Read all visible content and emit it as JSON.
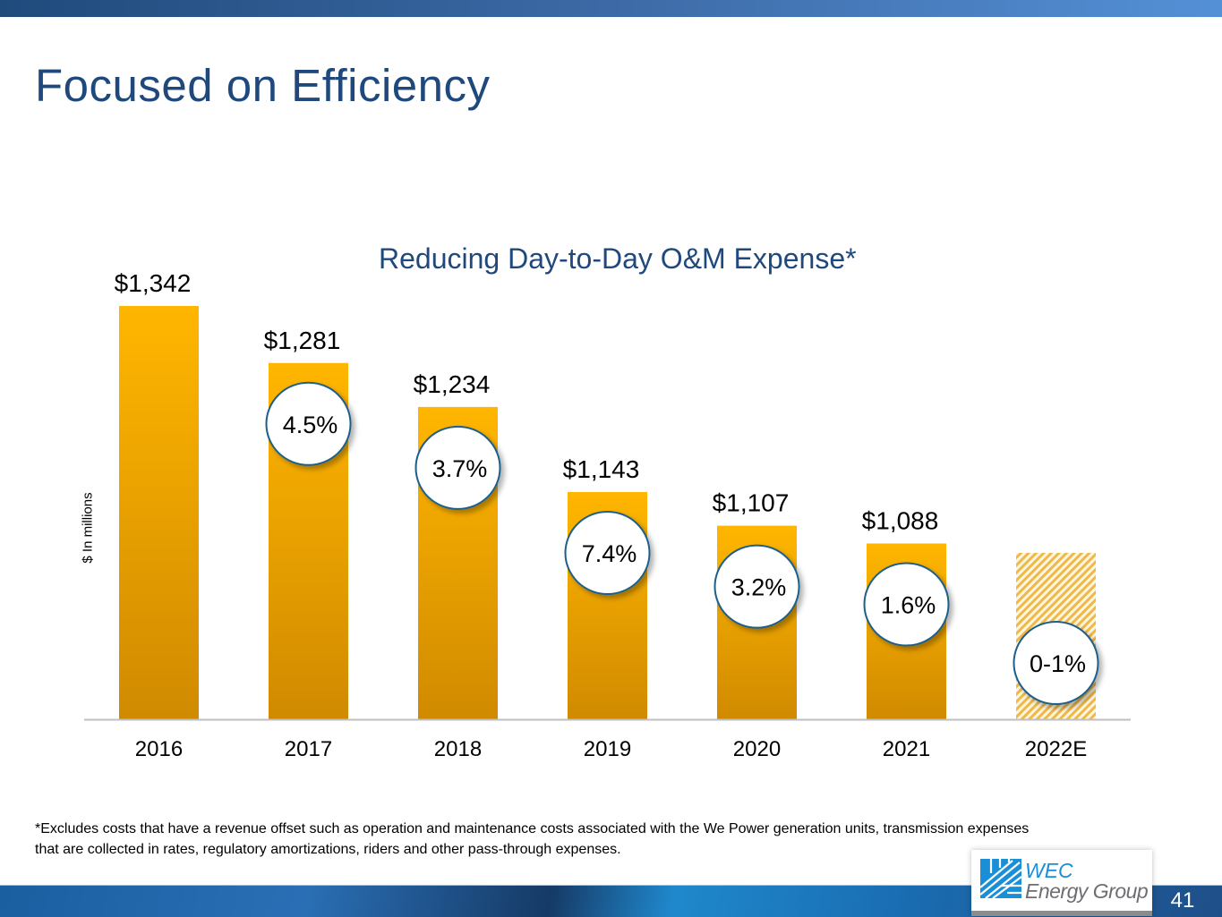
{
  "header": {
    "title": "Focused on Efficiency"
  },
  "chart_data": {
    "type": "bar",
    "title": "Reducing Day-to-Day O&M Expense*",
    "xlabel": "",
    "ylabel": "$ In millions",
    "categories": [
      "2016",
      "2017",
      "2018",
      "2019",
      "2020",
      "2021",
      "2022E"
    ],
    "values": [
      1342,
      1281,
      1234,
      1143,
      1107,
      1088,
      null
    ],
    "value_labels": [
      "$1,342",
      "$1,281",
      "$1,234",
      "$1,143",
      "$1,107",
      "$1,088",
      ""
    ],
    "estimate_value_approx": 1078,
    "reduction_labels": [
      "",
      "4.5%",
      "3.7%",
      "7.4%",
      "3.2%",
      "1.6%",
      "0-1%"
    ],
    "estimated_categories": [
      "2022E"
    ],
    "ylim": [
      900,
      1350
    ],
    "grid": false,
    "legend": "none",
    "colors": {
      "bar_top": "#ffb600",
      "bar_bottom": "#d08a00",
      "estimate_hatch": "#f0b84a",
      "bubble_border": "#1f5f8b",
      "title": "#1f497d"
    }
  },
  "footnote": "*Excludes costs that have a revenue offset such as operation and maintenance costs associated with the We Power generation units, transmission expenses that are collected in rates, regulatory amortizations, riders and other pass-through expenses.",
  "logo": {
    "line1": "WEC",
    "line2": "Energy Group"
  },
  "page_number": "41"
}
